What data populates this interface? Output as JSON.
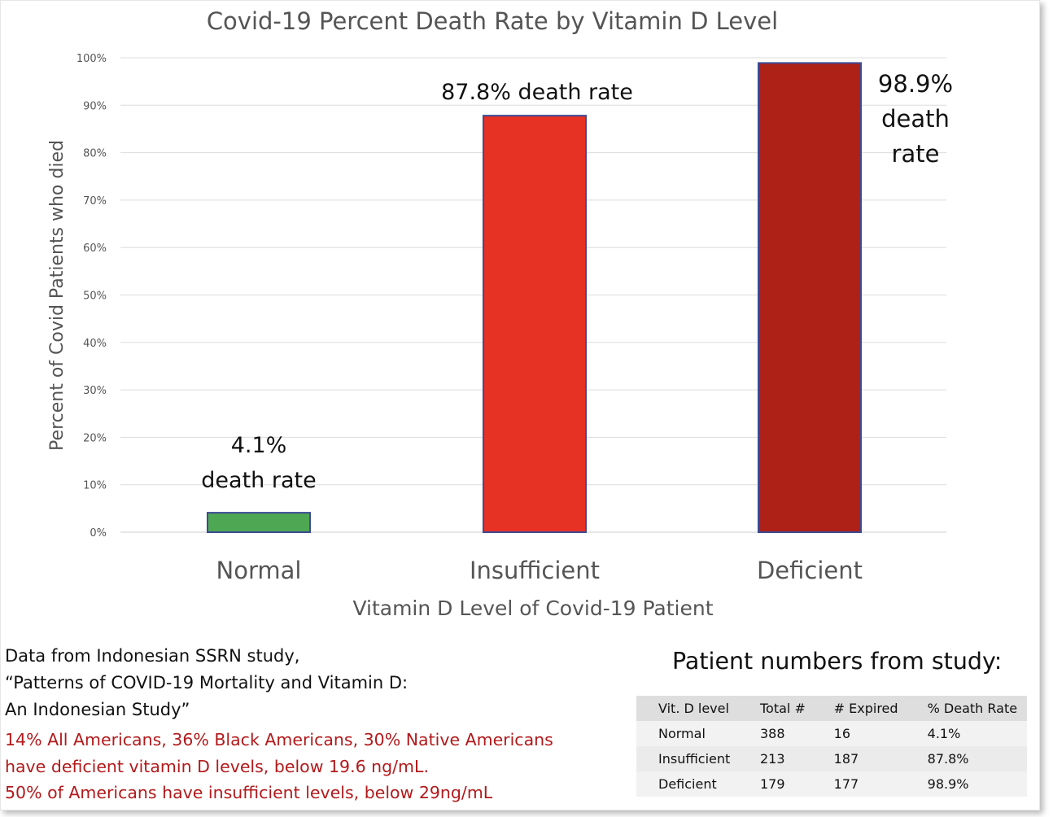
{
  "chart_data": {
    "type": "bar",
    "title": "Covid-19 Percent Death Rate by Vitamin D Level",
    "xlabel": "Vitamin D Level of Covid-19 Patient",
    "ylabel": "Percent of Covid Patients who died",
    "categories": [
      "Normal",
      "Insufficient",
      "Deficient"
    ],
    "values": [
      4.1,
      87.8,
      98.9
    ],
    "bar_colors": [
      "#4ea853",
      "#e63125",
      "#ae2117"
    ],
    "bar_outline": "#3d4a94",
    "data_labels": [
      [
        "4.1%",
        "death rate"
      ],
      [
        "87.8% death rate"
      ],
      [
        "98.9%",
        "death",
        "rate"
      ]
    ],
    "y_ticks": [
      "0%",
      "10%",
      "20%",
      "30%",
      "40%",
      "50%",
      "60%",
      "70%",
      "80%",
      "90%",
      "100%"
    ],
    "ylim": [
      0,
      100
    ],
    "grid": true,
    "legend": "none"
  },
  "source": {
    "lines": [
      "Data from Indonesian SSRN study,",
      "“Patterns of COVID-19 Mortality and Vitamin D:",
      "An Indonesian Study”"
    ]
  },
  "facts": {
    "color": "#b3191b",
    "lines": [
      "14% All Americans, 36% Black Americans, 30% Native Americans",
      "have deficient vitamin D levels, below 19.6 ng/mL.",
      "50% of Americans have insufficient levels, below 29ng/mL"
    ]
  },
  "patient_table": {
    "title": "Patient numbers from study:",
    "headers": [
      "Vit. D level",
      "Total #",
      "# Expired",
      "% Death Rate"
    ],
    "rows": [
      [
        "Normal",
        "388",
        "16",
        "4.1%"
      ],
      [
        "Insufficient",
        "213",
        "187",
        "87.8%"
      ],
      [
        "Deficient",
        "179",
        "177",
        "98.9%"
      ]
    ]
  }
}
